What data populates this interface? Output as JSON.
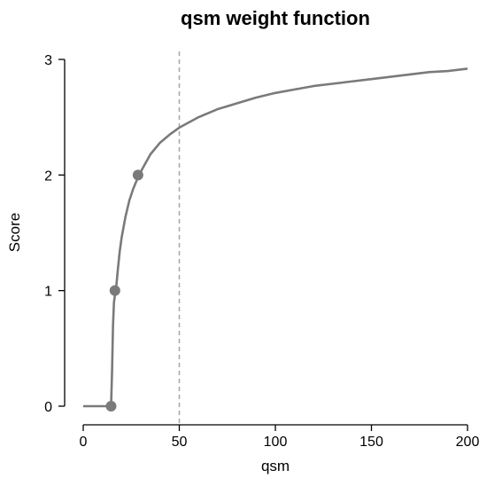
{
  "chart_data": {
    "type": "line",
    "title": "qsm weight function",
    "xlabel": "qsm",
    "ylabel": "Score",
    "xlim": [
      0,
      200
    ],
    "ylim": [
      0,
      3
    ],
    "x_ticks": [
      0,
      50,
      100,
      150,
      200
    ],
    "y_ticks": [
      0,
      1,
      2,
      3
    ],
    "grid": false,
    "line_color": "#7a7a7a",
    "reference_line": {
      "x": 50,
      "style": "dashed",
      "color": "#aaaaaa"
    },
    "curve": {
      "x": [
        0,
        14,
        14.5,
        15,
        15.5,
        16,
        16.5,
        17,
        18,
        19,
        20,
        22,
        24,
        26,
        28,
        29,
        30,
        35,
        40,
        45,
        50,
        60,
        70,
        80,
        90,
        100,
        110,
        120,
        130,
        140,
        150,
        160,
        170,
        180,
        190,
        200
      ],
      "y": [
        0,
        0,
        0,
        0.3,
        0.7,
        0.9,
        0.96,
        1.0,
        1.18,
        1.34,
        1.46,
        1.64,
        1.78,
        1.88,
        1.96,
        2.0,
        2.03,
        2.18,
        2.28,
        2.35,
        2.41,
        2.5,
        2.57,
        2.62,
        2.67,
        2.71,
        2.74,
        2.77,
        2.79,
        2.81,
        2.83,
        2.85,
        2.87,
        2.89,
        2.9,
        2.92
      ]
    },
    "points": [
      {
        "x": 14.5,
        "y": 0
      },
      {
        "x": 16.5,
        "y": 1
      },
      {
        "x": 28.5,
        "y": 2
      }
    ]
  }
}
